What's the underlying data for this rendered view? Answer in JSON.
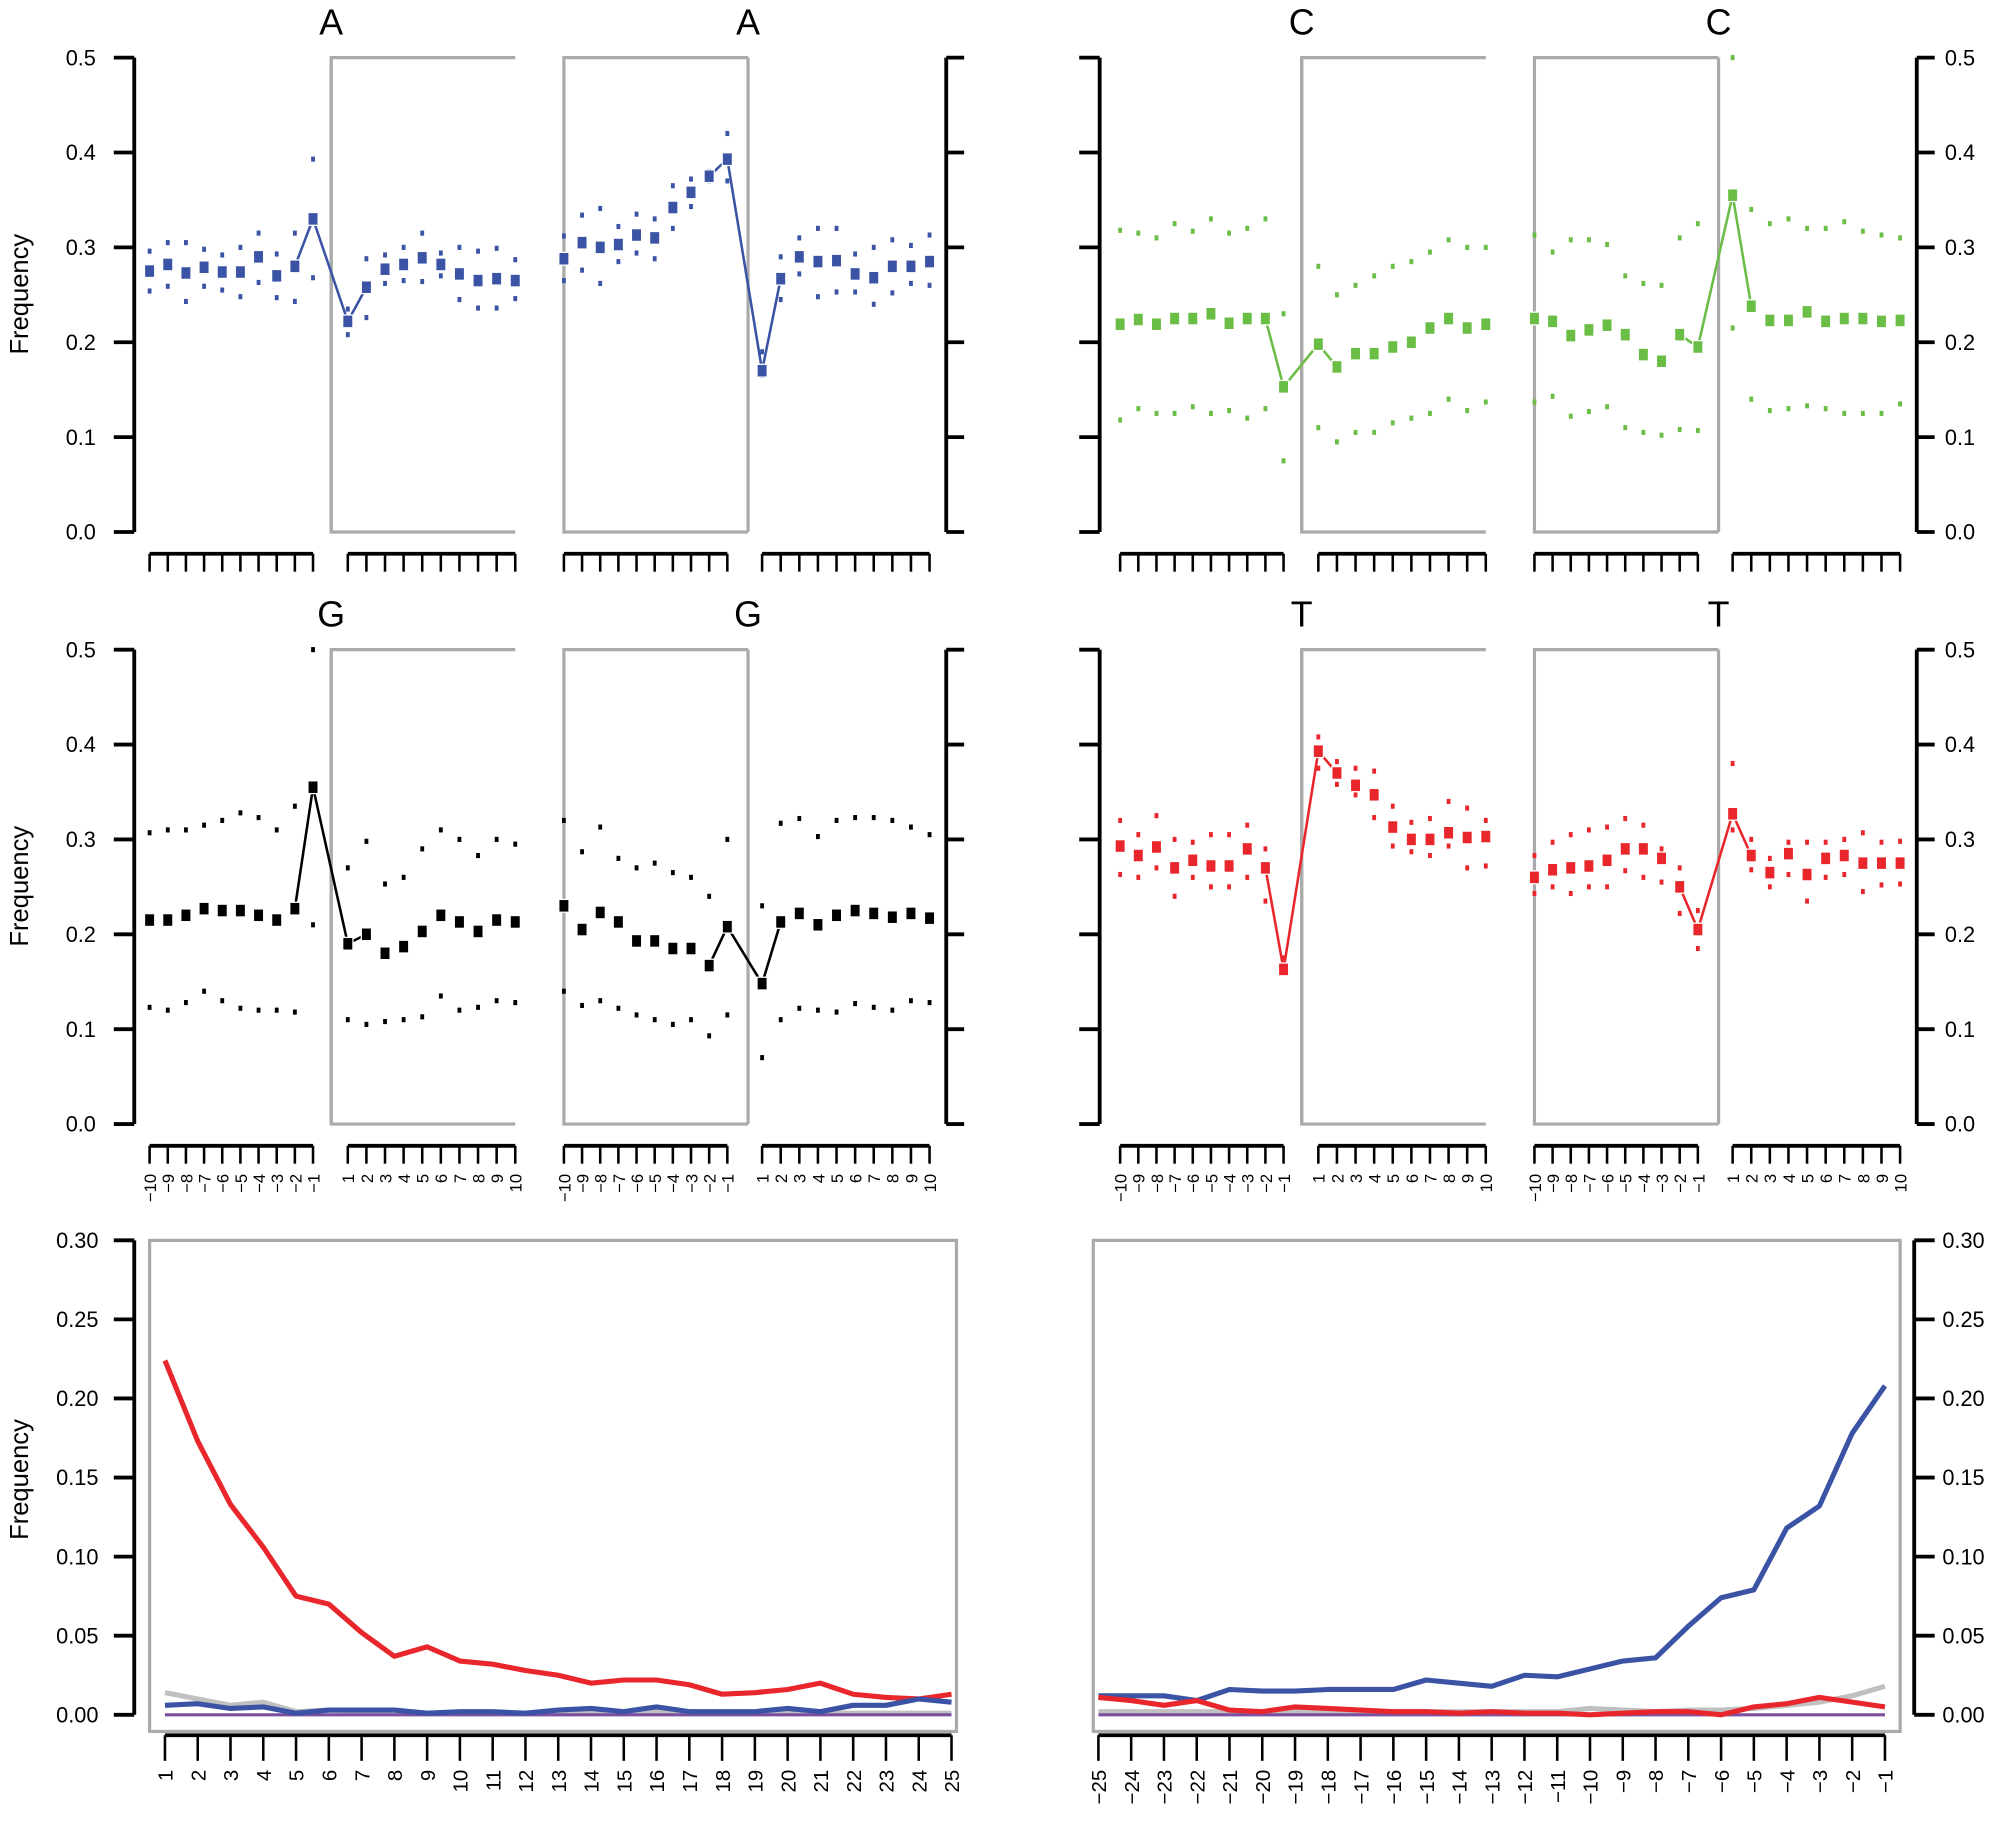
{
  "chart_data": [
    {
      "type": "scatter",
      "title": "A",
      "color": "#3a53a4",
      "ylabel": "Frequency",
      "ylim": [
        0,
        0.5
      ],
      "yticks": [
        "0.0",
        "0.1",
        "0.2",
        "0.3",
        "0.4",
        "0.5"
      ],
      "subplots": [
        {
          "title": "A",
          "mean": [
            0.275,
            0.282,
            0.273,
            0.279,
            0.274,
            0.274,
            0.29,
            0.27,
            0.28,
            0.33,
            0.222,
            0.258,
            0.277,
            0.282,
            0.289,
            0.282,
            0.272,
            0.265,
            0.267,
            0.265
          ],
          "upper": [
            0.296,
            0.305,
            0.305,
            0.298,
            0.292,
            0.3,
            0.315,
            0.293,
            0.315,
            0.393,
            0.235,
            0.288,
            0.292,
            0.3,
            0.315,
            0.294,
            0.3,
            0.296,
            0.299,
            0.287
          ],
          "lower": [
            0.254,
            0.259,
            0.243,
            0.259,
            0.255,
            0.248,
            0.263,
            0.247,
            0.243,
            0.268,
            0.208,
            0.226,
            0.262,
            0.265,
            0.264,
            0.27,
            0.245,
            0.236,
            0.236,
            0.246
          ]
        },
        {
          "title": "A",
          "mean": [
            0.288,
            0.305,
            0.3,
            0.303,
            0.313,
            0.31,
            0.342,
            0.358,
            0.375,
            0.393,
            0.17,
            0.267,
            0.29,
            0.285,
            0.286,
            0.272,
            0.268,
            0.28,
            0.28,
            0.285
          ],
          "upper": [
            0.312,
            0.334,
            0.341,
            0.322,
            0.335,
            0.33,
            0.365,
            0.372,
            0.38,
            0.42,
            0.19,
            0.29,
            0.31,
            0.32,
            0.32,
            0.293,
            0.3,
            0.308,
            0.302,
            0.313
          ],
          "lower": [
            0.265,
            0.276,
            0.262,
            0.285,
            0.294,
            0.288,
            0.32,
            0.343,
            0.37,
            0.37,
            0.165,
            0.245,
            0.272,
            0.248,
            0.253,
            0.253,
            0.24,
            0.252,
            0.262,
            0.26
          ]
        }
      ]
    },
    {
      "type": "scatter",
      "title": "C",
      "color": "#6abd45",
      "ylabel": "",
      "ylim": [
        0,
        0.5
      ],
      "yticks": [
        "0.0",
        "0.1",
        "0.2",
        "0.3",
        "0.4",
        "0.5"
      ],
      "subplots": [
        {
          "title": "C",
          "mean": [
            0.219,
            0.224,
            0.219,
            0.225,
            0.225,
            0.23,
            0.22,
            0.225,
            0.225,
            0.153,
            0.198,
            0.174,
            0.188,
            0.188,
            0.195,
            0.2,
            0.215,
            0.225,
            0.215,
            0.219
          ],
          "upper": [
            0.318,
            0.315,
            0.31,
            0.325,
            0.317,
            0.33,
            0.315,
            0.32,
            0.33,
            0.23,
            0.28,
            0.25,
            0.26,
            0.27,
            0.28,
            0.285,
            0.295,
            0.308,
            0.3,
            0.3
          ],
          "lower": [
            0.118,
            0.13,
            0.125,
            0.125,
            0.132,
            0.125,
            0.128,
            0.12,
            0.13,
            0.075,
            0.11,
            0.095,
            0.105,
            0.105,
            0.115,
            0.12,
            0.125,
            0.14,
            0.128,
            0.137
          ]
        },
        {
          "title": "C",
          "mean": [
            0.225,
            0.222,
            0.207,
            0.213,
            0.218,
            0.208,
            0.187,
            0.18,
            0.208,
            0.195,
            0.355,
            0.238,
            0.223,
            0.223,
            0.232,
            0.222,
            0.225,
            0.225,
            0.222,
            0.223
          ],
          "upper": [
            0.313,
            0.295,
            0.308,
            0.308,
            0.303,
            0.27,
            0.262,
            0.26,
            0.31,
            0.325,
            0.5,
            0.34,
            0.325,
            0.33,
            0.32,
            0.32,
            0.327,
            0.317,
            0.313,
            0.31
          ],
          "lower": [
            0.137,
            0.143,
            0.122,
            0.127,
            0.132,
            0.11,
            0.105,
            0.102,
            0.108,
            0.107,
            0.215,
            0.14,
            0.128,
            0.13,
            0.133,
            0.13,
            0.125,
            0.125,
            0.125,
            0.135
          ]
        }
      ]
    },
    {
      "type": "scatter",
      "title": "G",
      "color": "#000000",
      "ylabel": "Frequency",
      "ylim": [
        0,
        0.5
      ],
      "yticks": [
        "0.0",
        "0.1",
        "0.2",
        "0.3",
        "0.4",
        "0.5"
      ],
      "xticks": [
        "−10",
        "−9",
        "−8",
        "−7",
        "−6",
        "−5",
        "−4",
        "−3",
        "−2",
        "−1",
        "1",
        "2",
        "3",
        "4",
        "5",
        "6",
        "7",
        "8",
        "9",
        "10"
      ],
      "subplots": [
        {
          "title": "G",
          "mean": [
            0.215,
            0.215,
            0.22,
            0.227,
            0.225,
            0.225,
            0.22,
            0.215,
            0.227,
            0.355,
            0.19,
            0.2,
            0.18,
            0.187,
            0.203,
            0.22,
            0.213,
            0.203,
            0.215,
            0.213
          ],
          "upper": [
            0.307,
            0.31,
            0.31,
            0.315,
            0.32,
            0.328,
            0.323,
            0.31,
            0.335,
            0.5,
            0.27,
            0.298,
            0.253,
            0.26,
            0.29,
            0.31,
            0.3,
            0.283,
            0.3,
            0.295
          ],
          "lower": [
            0.123,
            0.12,
            0.128,
            0.14,
            0.13,
            0.122,
            0.12,
            0.12,
            0.118,
            0.21,
            0.11,
            0.105,
            0.108,
            0.11,
            0.113,
            0.135,
            0.12,
            0.123,
            0.13,
            0.128
          ]
        },
        {
          "title": "G",
          "mean": [
            0.23,
            0.205,
            0.223,
            0.213,
            0.193,
            0.193,
            0.185,
            0.185,
            0.167,
            0.208,
            0.148,
            0.213,
            0.222,
            0.21,
            0.22,
            0.225,
            0.222,
            0.218,
            0.222,
            0.217
          ],
          "upper": [
            0.32,
            0.287,
            0.313,
            0.28,
            0.27,
            0.275,
            0.265,
            0.26,
            0.24,
            0.3,
            0.23,
            0.317,
            0.322,
            0.303,
            0.32,
            0.323,
            0.323,
            0.32,
            0.313,
            0.305
          ],
          "lower": [
            0.14,
            0.125,
            0.13,
            0.122,
            0.115,
            0.11,
            0.105,
            0.11,
            0.093,
            0.115,
            0.07,
            0.11,
            0.122,
            0.12,
            0.118,
            0.127,
            0.123,
            0.12,
            0.13,
            0.128
          ]
        }
      ]
    },
    {
      "type": "scatter",
      "title": "T",
      "color": "#e8262b",
      "ylabel": "",
      "ylim": [
        0,
        0.5
      ],
      "yticks": [
        "0.0",
        "0.1",
        "0.2",
        "0.3",
        "0.4",
        "0.5"
      ],
      "xticks": [
        "−10",
        "−9",
        "−8",
        "−7",
        "−6",
        "−5",
        "−4",
        "−3",
        "−2",
        "−1",
        "1",
        "2",
        "3",
        "4",
        "5",
        "6",
        "7",
        "8",
        "9",
        "10"
      ],
      "subplots": [
        {
          "title": "T",
          "mean": [
            0.293,
            0.283,
            0.292,
            0.27,
            0.278,
            0.272,
            0.272,
            0.29,
            0.27,
            0.163,
            0.393,
            0.37,
            0.357,
            0.347,
            0.313,
            0.3,
            0.3,
            0.307,
            0.302,
            0.303
          ],
          "upper": [
            0.32,
            0.305,
            0.325,
            0.3,
            0.297,
            0.305,
            0.305,
            0.315,
            0.29,
            0.175,
            0.408,
            0.382,
            0.375,
            0.372,
            0.335,
            0.318,
            0.322,
            0.34,
            0.333,
            0.32
          ],
          "lower": [
            0.263,
            0.26,
            0.27,
            0.24,
            0.26,
            0.25,
            0.25,
            0.26,
            0.235,
            0.16,
            0.375,
            0.358,
            0.347,
            0.323,
            0.293,
            0.287,
            0.283,
            0.293,
            0.27,
            0.272
          ]
        },
        {
          "title": "T",
          "mean": [
            0.26,
            0.268,
            0.27,
            0.272,
            0.278,
            0.29,
            0.29,
            0.28,
            0.25,
            0.205,
            0.327,
            0.283,
            0.265,
            0.285,
            0.263,
            0.28,
            0.283,
            0.275,
            0.275,
            0.275
          ],
          "upper": [
            0.283,
            0.297,
            0.305,
            0.31,
            0.313,
            0.322,
            0.315,
            0.29,
            0.27,
            0.225,
            0.38,
            0.3,
            0.28,
            0.297,
            0.297,
            0.297,
            0.3,
            0.307,
            0.297,
            0.298
          ],
          "lower": [
            0.243,
            0.25,
            0.243,
            0.25,
            0.25,
            0.267,
            0.26,
            0.255,
            0.222,
            0.185,
            0.31,
            0.268,
            0.25,
            0.263,
            0.235,
            0.26,
            0.263,
            0.245,
            0.252,
            0.253
          ]
        }
      ]
    },
    {
      "type": "line",
      "ylabel": "Frequency",
      "ylim": [
        0,
        0.3
      ],
      "yticks": [
        "0.00",
        "0.05",
        "0.10",
        "0.15",
        "0.20",
        "0.25",
        "0.30"
      ],
      "x": [
        "1",
        "2",
        "3",
        "4",
        "5",
        "6",
        "7",
        "8",
        "9",
        "10",
        "11",
        "12",
        "13",
        "14",
        "15",
        "16",
        "17",
        "18",
        "19",
        "20",
        "21",
        "22",
        "23",
        "24",
        "25"
      ],
      "series": [
        {
          "name": "gray",
          "color": "#c0c0c0",
          "values": [
            0.014,
            0.01,
            0.006,
            0.008,
            0.002,
            0.003,
            0.002,
            0.002,
            0.001,
            0.001,
            0.001,
            0.001,
            0.002,
            0.002,
            0.001,
            0.002,
            0.001,
            0.001,
            0.001,
            0.001,
            0.001,
            0.001,
            0.001,
            0.001,
            0.001
          ]
        },
        {
          "name": "purple",
          "color": "#7b4fa0",
          "values": [
            0,
            0,
            0,
            0,
            0,
            0,
            0,
            0,
            0,
            0,
            0,
            0,
            0,
            0,
            0,
            0,
            0,
            0,
            0,
            0,
            0,
            0,
            0,
            0,
            0
          ]
        },
        {
          "name": "red",
          "color": "#e8262b",
          "values": [
            0.224,
            0.173,
            0.133,
            0.106,
            0.075,
            0.07,
            0.052,
            0.037,
            0.043,
            0.034,
            0.032,
            0.028,
            0.025,
            0.02,
            0.022,
            0.022,
            0.019,
            0.013,
            0.014,
            0.016,
            0.02,
            0.013,
            0.011,
            0.01,
            0.013
          ]
        },
        {
          "name": "blue",
          "color": "#3a53a4",
          "values": [
            0.006,
            0.007,
            0.004,
            0.005,
            0.001,
            0.003,
            0.003,
            0.003,
            0.001,
            0.002,
            0.002,
            0.001,
            0.003,
            0.004,
            0.002,
            0.005,
            0.002,
            0.002,
            0.002,
            0.004,
            0.002,
            0.006,
            0.006,
            0.01,
            0.008
          ]
        }
      ]
    },
    {
      "type": "line",
      "ylabel": "",
      "ylim": [
        0,
        0.3
      ],
      "yticks": [
        "0.00",
        "0.05",
        "0.10",
        "0.15",
        "0.20",
        "0.25",
        "0.30"
      ],
      "x": [
        "−25",
        "−24",
        "−23",
        "−22",
        "−21",
        "−20",
        "−19",
        "−18",
        "−17",
        "−16",
        "−15",
        "−14",
        "−13",
        "−12",
        "−11",
        "−10",
        "−9",
        "−8",
        "−7",
        "−6",
        "−5",
        "−4",
        "−3",
        "−2",
        "−1"
      ],
      "series": [
        {
          "name": "gray",
          "color": "#c0c0c0",
          "values": [
            0.002,
            0.002,
            0.002,
            0.002,
            0.002,
            0.002,
            0.002,
            0.002,
            0.002,
            0.002,
            0.002,
            0.002,
            0.002,
            0.002,
            0.002,
            0.004,
            0.003,
            0.002,
            0.003,
            0.003,
            0.004,
            0.006,
            0.008,
            0.012,
            0.018
          ]
        },
        {
          "name": "purple",
          "color": "#7b4fa0",
          "values": [
            0,
            0,
            0,
            0,
            0,
            0,
            0,
            0,
            0,
            0,
            0,
            0,
            0,
            0,
            0,
            0,
            0,
            0,
            0,
            0,
            0,
            0,
            0,
            0,
            0
          ]
        },
        {
          "name": "blue",
          "color": "#3a53a4",
          "values": [
            0.012,
            0.012,
            0.012,
            0.009,
            0.016,
            0.015,
            0.015,
            0.016,
            0.016,
            0.016,
            0.022,
            0.02,
            0.018,
            0.025,
            0.024,
            0.029,
            0.034,
            0.036,
            0.056,
            0.074,
            0.079,
            0.118,
            0.132,
            0.178,
            0.208
          ]
        },
        {
          "name": "red",
          "color": "#e8262b",
          "values": [
            0.011,
            0.009,
            0.006,
            0.009,
            0.003,
            0.002,
            0.005,
            0.004,
            0.003,
            0.002,
            0.002,
            0.001,
            0.002,
            0.001,
            0.001,
            0.0,
            0.001,
            0.002,
            0.002,
            0.0,
            0.005,
            0.007,
            0.011,
            0.008,
            0.005
          ]
        }
      ]
    }
  ]
}
